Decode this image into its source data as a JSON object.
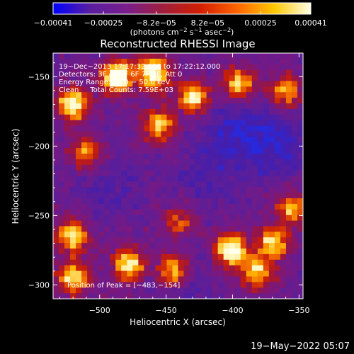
{
  "chart_data": {
    "type": "heatmap",
    "title": "Reconstructed RHESSI Image",
    "xlabel": "Heliocentric X (arcsec)",
    "ylabel": "Heliocentric Y (arcsec)",
    "xlim": [
      -535,
      -347
    ],
    "ylim": [
      -310,
      -133
    ],
    "xticks": [
      -500,
      -450,
      -400,
      -350
    ],
    "yticks": [
      -300,
      -250,
      -200,
      -150
    ],
    "xtick_labels": [
      "−500",
      "−450",
      "−400",
      "−350"
    ],
    "ytick_labels": [
      "−300",
      "−250",
      "−200",
      "−150"
    ],
    "colorbar": {
      "range": [
        -0.00041,
        0.00041
      ],
      "tick_values": [
        -0.00041,
        -0.00025,
        -8.2e-05,
        8.2e-05,
        0.00025,
        0.00041
      ],
      "tick_labels": [
        "−0.00041",
        "−0.00025",
        "−8.2e−05",
        "8.2e−05",
        "0.00025",
        "0.00041"
      ],
      "units_prefix": "(photons cm",
      "units_exp1": "−2",
      "units_mid1": " s",
      "units_exp2": "−1",
      "units_mid2": " asec",
      "units_exp3": "−2",
      "units_suffix": ")",
      "colors": [
        "#0000ff",
        "#5a1ea0",
        "#7a1e8c",
        "#a01e3c",
        "#d21e00",
        "#ff6400",
        "#ffc800",
        "#ffffe6"
      ]
    },
    "annotations": {
      "time_range": "19−Dec−2013 17:17:32.000 to 17:22:12.000",
      "detectors": "Detectors: 3F 4F 5F 6F 7F 8F, Att 0",
      "energy_range": "Energy Range: 25.0 − 50.0 keV",
      "clean": "Clean     Total Counts: 7.59E+03",
      "peak": "Position of Peak = [−483,−154]"
    },
    "peak_position": [
      -483,
      -154
    ],
    "bright_sources": [
      {
        "x": -520,
        "y": -170,
        "intensity": 0.9
      },
      {
        "x": -487,
        "y": -150,
        "intensity": 1.0
      },
      {
        "x": -460,
        "y": -147,
        "intensity": 0.95
      },
      {
        "x": -455,
        "y": -185,
        "intensity": 0.7
      },
      {
        "x": -430,
        "y": -165,
        "intensity": 0.75
      },
      {
        "x": -510,
        "y": -205,
        "intensity": 0.55
      },
      {
        "x": -395,
        "y": -155,
        "intensity": 0.7
      },
      {
        "x": -360,
        "y": -160,
        "intensity": 0.6
      },
      {
        "x": -520,
        "y": -265,
        "intensity": 0.75
      },
      {
        "x": -520,
        "y": -295,
        "intensity": 0.7
      },
      {
        "x": -478,
        "y": -285,
        "intensity": 0.8
      },
      {
        "x": -445,
        "y": -290,
        "intensity": 0.7
      },
      {
        "x": -402,
        "y": -275,
        "intensity": 0.95
      },
      {
        "x": -382,
        "y": -290,
        "intensity": 0.75
      },
      {
        "x": -370,
        "y": -270,
        "intensity": 0.75
      },
      {
        "x": -355,
        "y": -245,
        "intensity": 0.65
      },
      {
        "x": -440,
        "y": -255,
        "intensity": 0.4
      }
    ],
    "dark_regions": [
      {
        "x": -395,
        "y": -190,
        "intensity": 0.9
      },
      {
        "x": -365,
        "y": -200,
        "intensity": 0.8
      },
      {
        "x": -420,
        "y": -220,
        "intensity": 0.6
      },
      {
        "x": -490,
        "y": -230,
        "intensity": 0.5
      },
      {
        "x": -440,
        "y": -300,
        "intensity": 0.5
      }
    ]
  },
  "datestamp": "19−May−2022 05:07"
}
